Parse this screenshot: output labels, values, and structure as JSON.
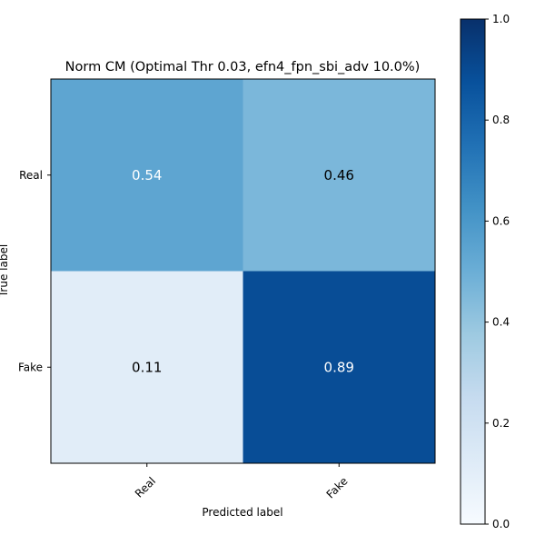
{
  "chart_data": {
    "type": "heatmap",
    "title": "Norm CM (Optimal Thr 0.03, efn4_fpn_sbi_adv 10.0%)",
    "xlabel": "Predicted label",
    "ylabel": "True label",
    "x_categories": [
      "Real",
      "Fake"
    ],
    "y_categories": [
      "Real",
      "Fake"
    ],
    "values": [
      [
        0.54,
        0.46
      ],
      [
        0.11,
        0.89
      ]
    ],
    "value_labels": [
      [
        "0.54",
        "0.46"
      ],
      [
        "0.11",
        "0.89"
      ]
    ],
    "colormap": "Blues",
    "vmin": 0.0,
    "vmax": 1.0,
    "colorbar_ticks": [
      "0.0",
      "0.2",
      "0.4",
      "0.6",
      "0.8",
      "1.0"
    ],
    "grid": false
  }
}
